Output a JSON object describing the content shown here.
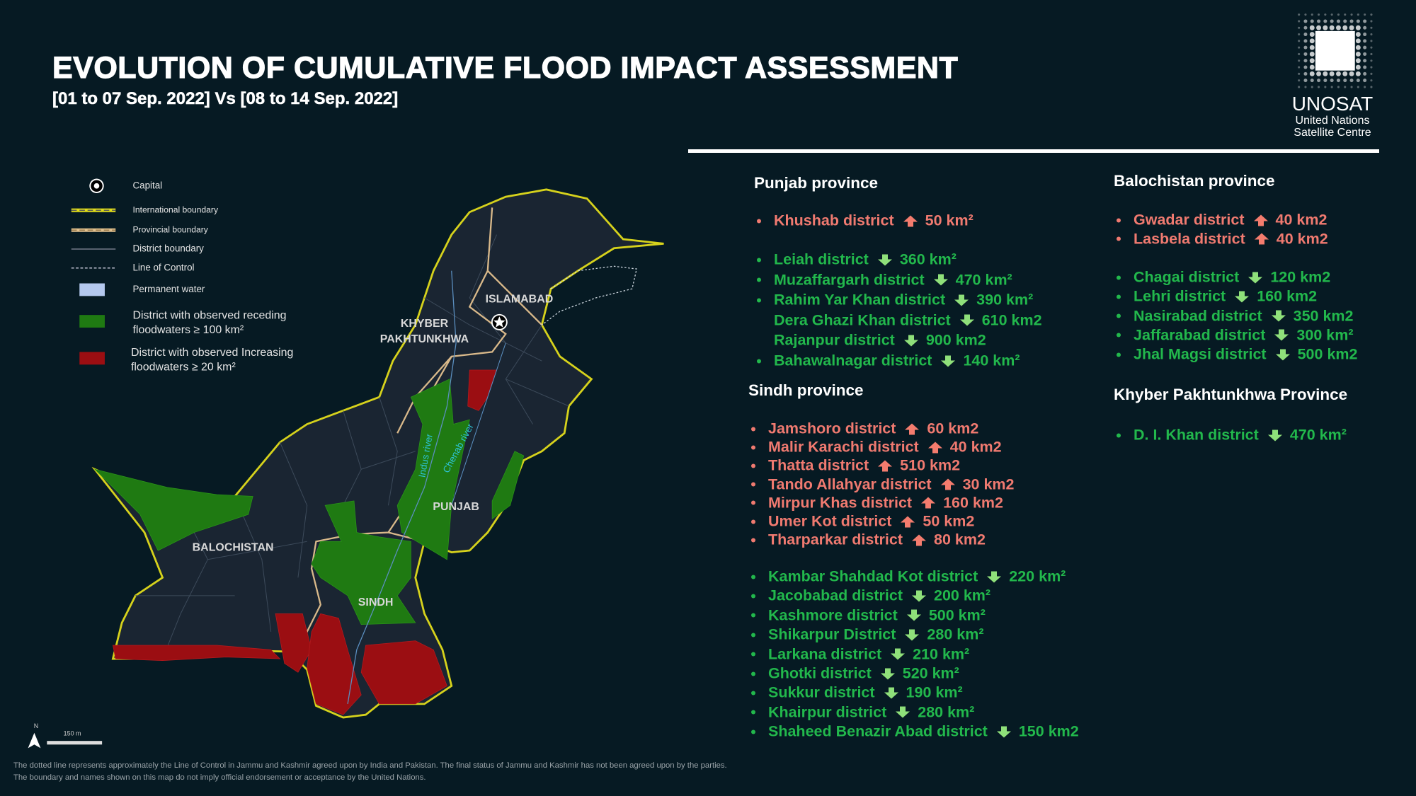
{
  "header": {
    "title": "EVOLUTION OF CUMULATIVE FLOOD IMPACT ASSESSMENT",
    "subtitle": "[01 to 07 Sep. 2022] Vs [08 to 14 Sep. 2022]"
  },
  "logo": {
    "acronym": "UNOSAT",
    "line1": "United Nations",
    "line2": "Satellite Centre"
  },
  "legend": [
    {
      "symbol": "capital",
      "lines": [
        "Capital"
      ]
    },
    {
      "symbol": "international-boundary",
      "lines": [
        "International boundary"
      ]
    },
    {
      "symbol": "provincial-boundary",
      "lines": [
        "Provincial boundary"
      ]
    },
    {
      "symbol": "district-boundary",
      "lines": [
        "District boundary"
      ]
    },
    {
      "symbol": "line-of-control",
      "lines": [
        "Line of Control"
      ]
    },
    {
      "symbol": "permanent-water",
      "lines": [
        "Permanent water"
      ]
    },
    {
      "symbol": "receding",
      "lines": [
        "District with observed receding",
        "floodwaters ≥  100 km²"
      ]
    },
    {
      "symbol": "increasing",
      "lines": [
        "District with observed Increasing",
        "floodwaters ≥ 20 km²"
      ]
    }
  ],
  "map": {
    "labels": [
      "ISLAMABAD",
      "KHYBER",
      "PAKHTUNKHWA",
      "PUNJAB",
      "BALOCHISTAN",
      "SINDH"
    ],
    "rivers": [
      "Indus river",
      "Chenab river"
    ],
    "north": "N",
    "scale": "150 m"
  },
  "provinces": [
    {
      "name": "Punjab province",
      "groups": [
        [
          {
            "district": "Khushab district",
            "area": "50 km²",
            "trend": "up",
            "bullet": true
          }
        ],
        [
          {
            "district": "Leiah district",
            "area": "360 km²",
            "trend": "down",
            "bullet": true
          },
          {
            "district": "Muzaffargarh district",
            "area": "470 km²",
            "trend": "down",
            "bullet": true
          },
          {
            "district": "Rahim Yar Khan district",
            "area": "390 km²",
            "trend": "down",
            "bullet": true
          },
          {
            "district": "Dera Ghazi Khan district",
            "area": "610 km2",
            "trend": "down",
            "bullet": false
          },
          {
            "district": "Rajanpur district",
            "area": "900 km2",
            "trend": "down",
            "bullet": false
          },
          {
            "district": "Bahawalnagar district",
            "area": "140 km²",
            "trend": "down",
            "bullet": true
          }
        ]
      ]
    },
    {
      "name": "Sindh province",
      "groups": [
        [
          {
            "district": "Jamshoro district",
            "area": "60 km2",
            "trend": "up",
            "bullet": true
          },
          {
            "district": "Malir Karachi district",
            "area": "40 km2",
            "trend": "up",
            "bullet": true
          },
          {
            "district": "Thatta district",
            "area": "510 km2",
            "trend": "up",
            "bullet": true
          },
          {
            "district": "Tando Allahyar district",
            "area": "30 km2",
            "trend": "up",
            "bullet": true
          },
          {
            "district": "Mirpur Khas district",
            "area": "160 km2",
            "trend": "up",
            "bullet": true
          },
          {
            "district": "Umer Kot district",
            "area": "50 km2",
            "trend": "up",
            "bullet": true
          },
          {
            "district": "Tharparkar district",
            "area": "80 km2",
            "trend": "up",
            "bullet": true
          }
        ],
        [
          {
            "district": "Kambar Shahdad Kot district",
            "area": "220 km²",
            "trend": "down",
            "bullet": true
          },
          {
            "district": "Jacobabad district",
            "area": "200 km²",
            "trend": "down",
            "bullet": true
          },
          {
            "district": "Kashmore district",
            "area": "500 km²",
            "trend": "down",
            "bullet": true
          },
          {
            "district": "Shikarpur District",
            "area": "280 km²",
            "trend": "down",
            "bullet": true
          },
          {
            "district": "Larkana district",
            "area": "210 km²",
            "trend": "down",
            "bullet": true
          },
          {
            "district": "Ghotki district",
            "area": "520 km²",
            "trend": "down",
            "bullet": true
          },
          {
            "district": "Sukkur district",
            "area": "190 km²",
            "trend": "down",
            "bullet": true
          },
          {
            "district": "Khairpur district",
            "area": "280 km²",
            "trend": "down",
            "bullet": true
          },
          {
            "district": "Shaheed Benazir Abad district",
            "area": "150 km2",
            "trend": "down",
            "bullet": true
          }
        ]
      ]
    },
    {
      "name": "Balochistan province",
      "groups": [
        [
          {
            "district": "Gwadar  district",
            "area": "40 km2",
            "trend": "up",
            "bullet": true
          },
          {
            "district": "Lasbela district",
            "area": "40 km2",
            "trend": "up",
            "bullet": true
          }
        ],
        [
          {
            "district": "Chagai district",
            "area": "120 km2",
            "trend": "down",
            "bullet": true
          },
          {
            "district": "Lehri district",
            "area": "160 km2",
            "trend": "down",
            "bullet": true
          },
          {
            "district": "Nasirabad district",
            "area": "350 km2",
            "trend": "down",
            "bullet": true
          },
          {
            "district": "Jaffarabad district",
            "area": "300 km²",
            "trend": "down",
            "bullet": true
          },
          {
            "district": "Jhal Magsi district",
            "area": "500 km2",
            "trend": "down",
            "bullet": true
          }
        ]
      ]
    },
    {
      "name": "Khyber Pakhtunkhwa Province",
      "groups": [
        [
          {
            "district": "D. I. Khan district",
            "area": "470 km²",
            "trend": "down",
            "bullet": true
          }
        ]
      ]
    }
  ],
  "footnote": [
    "The dotted line represents approximately the Line of Control in Jammu and Kashmir agreed upon by India and Pakistan. The final status of Jammu and Kashmir has not been agreed upon by the parties.",
    "The boundary and names shown on this map do not imply official endorsement or acceptance by the United Nations."
  ]
}
